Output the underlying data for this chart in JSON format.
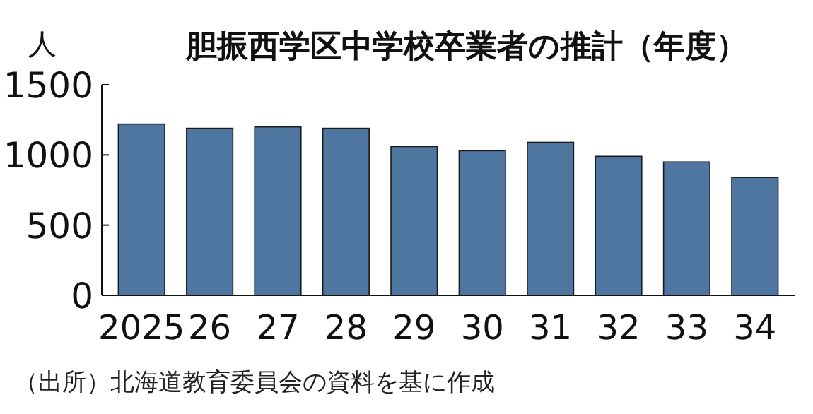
{
  "chart_data": {
    "type": "bar",
    "title": "胆振西学区中学校卒業者の推計（年度）",
    "ylabel": "人",
    "categories": [
      "2025",
      "26",
      "27",
      "28",
      "29",
      "30",
      "31",
      "32",
      "33",
      "34"
    ],
    "values": [
      1220,
      1190,
      1200,
      1190,
      1060,
      1030,
      1090,
      990,
      950,
      840
    ],
    "color": "#4f76a0",
    "ylim": [
      0,
      1500
    ],
    "yticks": [
      0,
      500,
      1000,
      1500
    ],
    "annotations": [
      "（出所）北海道教育委員会の資料を基に作成"
    ]
  }
}
